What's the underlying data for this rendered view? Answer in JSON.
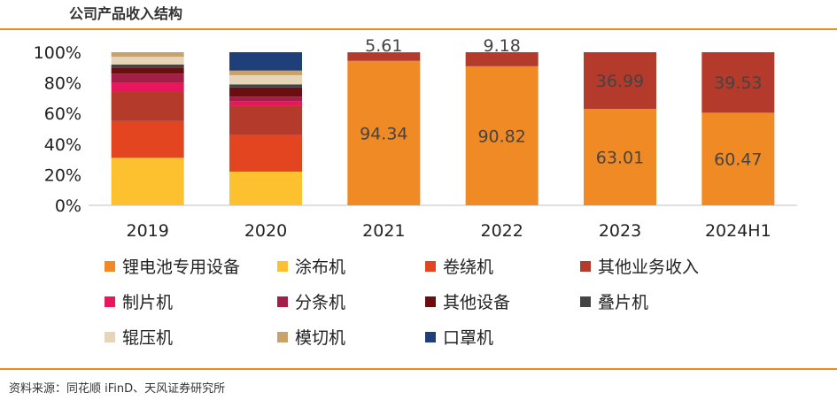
{
  "title": "公司产品收入结构",
  "source": "资料来源：同花顺 iFinD、天风证券研究所",
  "chart_data": {
    "type": "bar",
    "stacked": true,
    "categories": [
      "2019",
      "2020",
      "2021",
      "2022",
      "2023",
      "2024H1"
    ],
    "ylim": [
      0,
      100
    ],
    "yticks": [
      "0%",
      "20%",
      "40%",
      "60%",
      "80%",
      "100%"
    ],
    "grid": false,
    "legend_position": "bottom",
    "series": [
      {
        "name": "锂电池专用设备",
        "color": "#F08A24",
        "values": [
          0,
          0,
          94.34,
          90.82,
          63.01,
          60.47
        ],
        "labels": [
          null,
          null,
          "94.34",
          "90.82",
          "63.01",
          "60.47"
        ]
      },
      {
        "name": "涂布机",
        "color": "#FDC02F",
        "values": [
          31,
          22,
          0,
          0,
          0,
          0
        ]
      },
      {
        "name": "卷绕机",
        "color": "#E2451F",
        "values": [
          24,
          24,
          0,
          0,
          0,
          0
        ]
      },
      {
        "name": "其他业务收入",
        "color": "#B43A2B",
        "values": [
          19,
          19,
          5.61,
          9.18,
          36.99,
          39.53
        ],
        "labels": [
          null,
          null,
          "5.61",
          "9.18",
          "36.99",
          "39.53"
        ]
      },
      {
        "name": "制片机",
        "color": "#E8175D",
        "values": [
          6,
          3,
          0,
          0,
          0,
          0
        ]
      },
      {
        "name": "分条机",
        "color": "#A31F48",
        "values": [
          6,
          3,
          0,
          0,
          0,
          0
        ]
      },
      {
        "name": "其他设备",
        "color": "#6B0E12",
        "values": [
          4,
          6,
          0,
          0,
          0,
          0
        ]
      },
      {
        "name": "叠片机",
        "color": "#444444",
        "values": [
          2,
          2,
          0,
          0,
          0,
          0
        ]
      },
      {
        "name": "辊压机",
        "color": "#E6D5B8",
        "values": [
          5,
          6,
          0,
          0,
          0,
          0
        ]
      },
      {
        "name": "模切机",
        "color": "#C9A26B",
        "values": [
          3,
          3,
          0,
          0,
          0,
          0
        ]
      },
      {
        "name": "口罩机",
        "color": "#1E3F7A",
        "values": [
          0,
          12,
          0,
          0,
          0,
          0
        ]
      }
    ]
  }
}
